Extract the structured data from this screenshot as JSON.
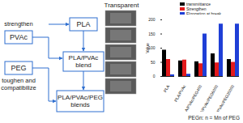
{
  "diagram": {
    "nodes": [
      {
        "label": "PLA"
      },
      {
        "label": "PVAc"
      },
      {
        "label": "PEG"
      },
      {
        "label": "PLA/PVAc blend"
      },
      {
        "label": "PLA/PVAc/PEG blends"
      }
    ],
    "annotations": [
      "strengthen",
      "toughen and compatibilize"
    ],
    "photo_label": "Transparent",
    "caption": "PEGn: n = Mn of PEG"
  },
  "chart_data": {
    "type": "bar",
    "categories": [
      "PLA",
      "PLA/PVAc",
      "PLA/PVAc/PEG400",
      "PLA/PVAc/PEG6000",
      "PLA/PVAc/PEG20000"
    ],
    "series": [
      {
        "name": "transmittance",
        "color": "#000000",
        "values": [
          93,
          55,
          52,
          80,
          60
        ]
      },
      {
        "name": "Strengthen",
        "color": "#e31a1c",
        "values": [
          60,
          58,
          45,
          48,
          50
        ]
      },
      {
        "name": "Elongation at break",
        "color": "#1f3fd6",
        "values": [
          6,
          8,
          150,
          185,
          185
        ]
      }
    ],
    "ylabel": "Value",
    "ylim": [
      0,
      200
    ],
    "yticks": [
      0,
      50,
      100,
      150,
      200
    ],
    "legend": "top-right"
  }
}
